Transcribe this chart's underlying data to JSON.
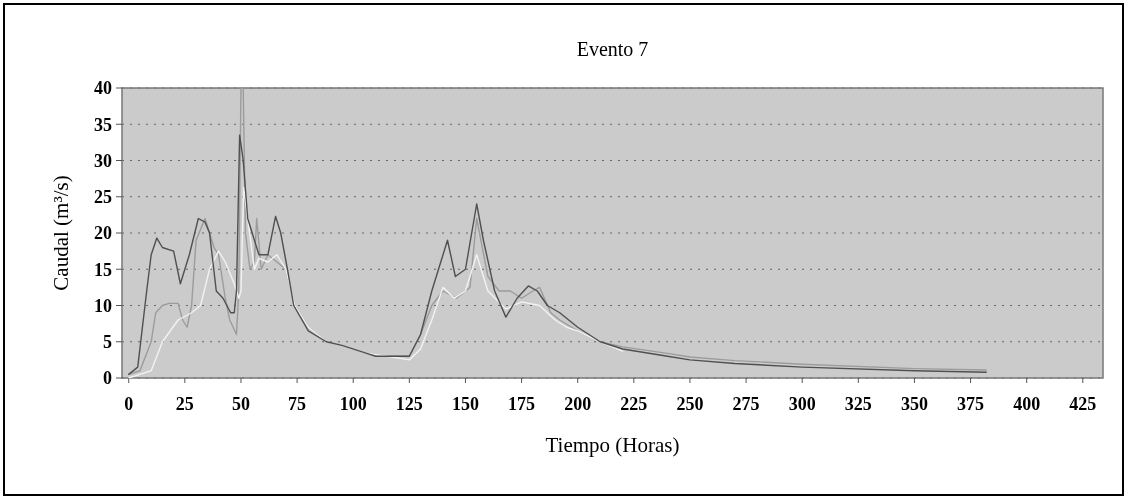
{
  "chart_data": {
    "type": "line",
    "title": "Evento 7",
    "xlabel": "Tiempo (Horas)",
    "ylabel": "Caudal (m³/s)",
    "xlim": [
      -3,
      434
    ],
    "ylim": [
      0,
      40
    ],
    "xticks": [
      0,
      25,
      50,
      75,
      100,
      125,
      150,
      175,
      200,
      225,
      250,
      275,
      300,
      325,
      350,
      375,
      400,
      425
    ],
    "yticks": [
      0,
      5,
      10,
      15,
      20,
      25,
      30,
      35,
      40
    ],
    "grid": "y",
    "series": [
      {
        "color": "#9c9c9c",
        "x": [
          0,
          5,
          10,
          12,
          15,
          18,
          22,
          24,
          26,
          28,
          30,
          34,
          38,
          40,
          43,
          45,
          48,
          49,
          50,
          51,
          52,
          54,
          56,
          57,
          59,
          62,
          66,
          70,
          74,
          80,
          88,
          95,
          105,
          115,
          125,
          130,
          135,
          140,
          146,
          152,
          155,
          160,
          165,
          170,
          175,
          180,
          183,
          188,
          192,
          200,
          210,
          220,
          240,
          250,
          270,
          300,
          350,
          382
        ],
        "values": [
          0.5,
          1,
          5,
          9,
          10,
          10.3,
          10.3,
          8,
          7,
          10,
          19,
          22,
          18,
          17,
          11,
          8,
          6,
          12,
          40,
          40,
          20,
          15,
          16,
          22,
          15,
          17,
          16,
          15,
          10,
          7,
          5,
          4.5,
          3.5,
          3,
          3,
          6,
          10,
          12,
          11,
          12.5,
          22,
          14,
          12,
          12,
          11,
          12,
          12.5,
          9,
          8,
          6.5,
          5,
          4.3,
          3.4,
          2.9,
          2.4,
          1.9,
          1.3,
          1.1
        ]
      },
      {
        "color": "#505050",
        "x": [
          0,
          4,
          8,
          10,
          12.5,
          15,
          20,
          23,
          27,
          31,
          34,
          36,
          39,
          42,
          45.4,
          47,
          48,
          49.4,
          51,
          53,
          55,
          58,
          62,
          65.4,
          67.7,
          70.7,
          73.5,
          80,
          88,
          95,
          105,
          110,
          120,
          125,
          130,
          135,
          139,
          142,
          145.5,
          150,
          155,
          158,
          163,
          168,
          173,
          178,
          182,
          186.5,
          192,
          200,
          210,
          220,
          240,
          250,
          270,
          300,
          350,
          382
        ],
        "values": [
          0.5,
          1.5,
          12,
          17,
          19.3,
          18,
          17.5,
          13,
          17,
          22,
          21.5,
          20,
          12,
          11,
          9,
          9,
          12,
          33.5,
          30,
          22,
          20,
          17,
          17,
          22.3,
          20,
          15,
          10,
          6.5,
          5,
          4.5,
          3.5,
          3,
          3,
          3,
          6,
          12,
          16,
          19,
          14,
          15,
          24,
          19,
          12,
          8.4,
          11,
          12.7,
          12,
          10,
          9,
          7,
          5,
          4,
          3,
          2.5,
          2,
          1.5,
          1,
          0.8
        ]
      },
      {
        "color": "#f2f2f2",
        "x": [
          0,
          5,
          10,
          15,
          22,
          28,
          32,
          36,
          40,
          43,
          47,
          49,
          50,
          51.2,
          53,
          56,
          58,
          62,
          66,
          70,
          74,
          80,
          88,
          95,
          105,
          115,
          125,
          130,
          135,
          140,
          145,
          150,
          155,
          160,
          168,
          175,
          183,
          190,
          195,
          200,
          210,
          220
        ],
        "values": [
          0,
          0.5,
          1,
          5,
          8,
          9,
          10,
          15,
          17.5,
          16,
          13,
          11,
          12,
          26.3,
          22,
          15,
          16.5,
          16,
          17,
          15,
          10,
          7,
          5,
          4.5,
          3.5,
          3,
          2.5,
          4,
          8,
          12.5,
          11,
          12,
          17,
          12,
          9.5,
          10.5,
          10,
          8,
          7,
          6.5,
          5,
          3.7
        ]
      }
    ]
  }
}
